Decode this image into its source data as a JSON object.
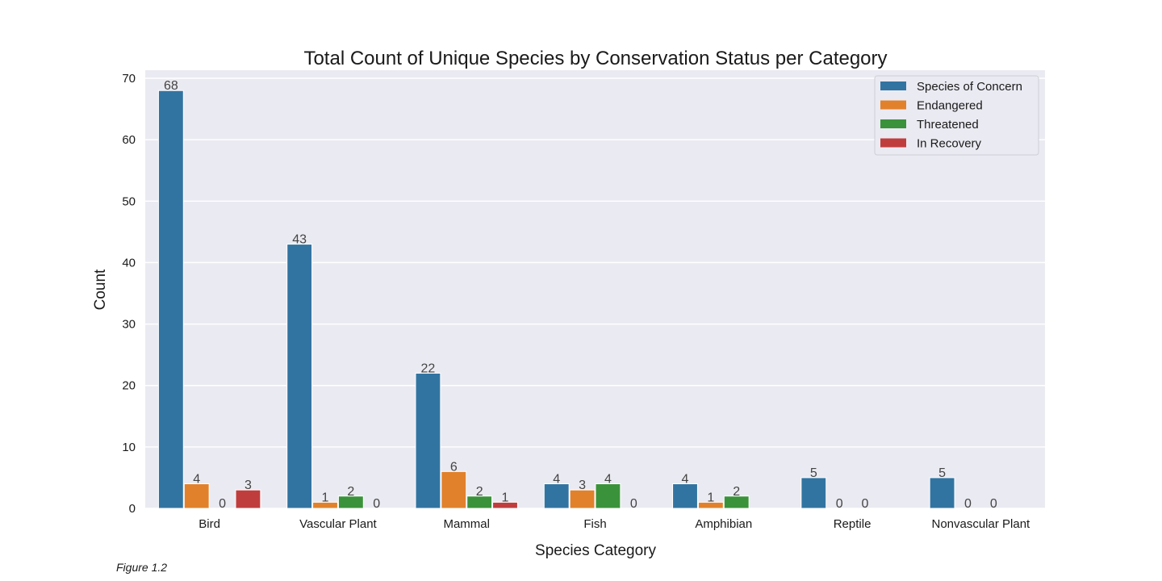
{
  "chart_data": {
    "type": "bar",
    "title": "Total Count of Unique Species by Conservation Status per Category",
    "xlabel": "Species Category",
    "ylabel": "Count",
    "ylim": [
      0,
      70
    ],
    "yticks": [
      0,
      10,
      20,
      30,
      40,
      50,
      60,
      70
    ],
    "grid": true,
    "legend_position": "top-right",
    "categories": [
      "Bird",
      "Vascular Plant",
      "Mammal",
      "Fish",
      "Amphibian",
      "Reptile",
      "Nonvascular Plant"
    ],
    "series": [
      {
        "name": "Species of Concern",
        "color": "#3274a1",
        "values": [
          68,
          43,
          22,
          4,
          4,
          5,
          5
        ]
      },
      {
        "name": "Endangered",
        "color": "#e1812c",
        "values": [
          4,
          1,
          6,
          3,
          1,
          0,
          0
        ]
      },
      {
        "name": "Threatened",
        "color": "#3a923a",
        "values": [
          0,
          2,
          2,
          4,
          2,
          0,
          0
        ]
      },
      {
        "name": "In Recovery",
        "color": "#c03d3e",
        "values": [
          3,
          0,
          1,
          0,
          0,
          0,
          0
        ]
      }
    ],
    "data_labels": [
      [
        68,
        43,
        22,
        4,
        4,
        5,
        5
      ],
      [
        4,
        1,
        6,
        3,
        1,
        0,
        0
      ],
      [
        0,
        2,
        2,
        4,
        2,
        0,
        0
      ],
      [
        3,
        0,
        1,
        0,
        null,
        null,
        null
      ]
    ]
  },
  "note": "Figure 1.2"
}
